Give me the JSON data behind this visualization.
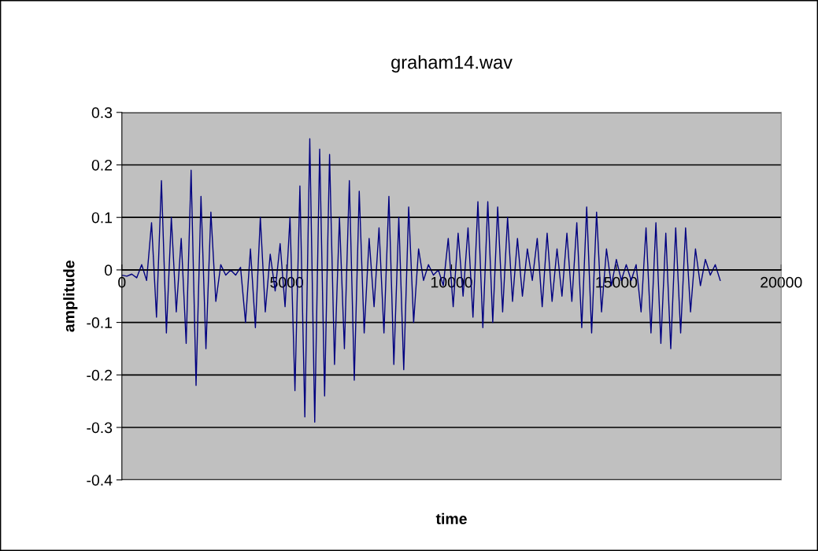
{
  "chart_data": {
    "type": "line",
    "title": "graham14.wav",
    "xlabel": "time",
    "ylabel": "amplitude",
    "xlim": [
      0,
      20000
    ],
    "xticks": [
      0,
      5000,
      10000,
      15000,
      20000
    ],
    "ylim": [
      -0.4,
      0.3
    ],
    "yticks": [
      -0.4,
      -0.3,
      -0.2,
      -0.1,
      0,
      0.1,
      0.2,
      0.3
    ],
    "grid": "y",
    "x": [
      0,
      150,
      300,
      450,
      600,
      750,
      900,
      1050,
      1200,
      1350,
      1500,
      1650,
      1800,
      1950,
      2100,
      2250,
      2400,
      2550,
      2700,
      2850,
      3000,
      3150,
      3300,
      3450,
      3600,
      3750,
      3900,
      4050,
      4200,
      4350,
      4500,
      4650,
      4800,
      4950,
      5100,
      5250,
      5400,
      5550,
      5700,
      5850,
      6000,
      6150,
      6300,
      6450,
      6600,
      6750,
      6900,
      7050,
      7200,
      7350,
      7500,
      7650,
      7800,
      7950,
      8100,
      8250,
      8400,
      8550,
      8700,
      8850,
      9000,
      9150,
      9300,
      9450,
      9600,
      9750,
      9900,
      10050,
      10200,
      10350,
      10500,
      10650,
      10800,
      10950,
      11100,
      11250,
      11400,
      11550,
      11700,
      11850,
      12000,
      12150,
      12300,
      12450,
      12600,
      12750,
      12900,
      13050,
      13200,
      13350,
      13500,
      13650,
      13800,
      13950,
      14100,
      14250,
      14400,
      14550,
      14700,
      14850,
      15000,
      15150,
      15300,
      15450,
      15600,
      15750,
      15900,
      16050,
      16200,
      16350,
      16500,
      16650,
      16800,
      16950,
      17100,
      17250,
      17400,
      17550,
      17700,
      17850,
      18000,
      18150
    ],
    "series": [
      {
        "color": "#000080",
        "values": [
          -0.01,
          -0.012,
          -0.008,
          -0.015,
          0.01,
          -0.02,
          0.09,
          -0.09,
          0.17,
          -0.12,
          0.1,
          -0.08,
          0.06,
          -0.14,
          0.19,
          -0.22,
          0.14,
          -0.15,
          0.11,
          -0.06,
          0.01,
          -0.01,
          0.0,
          -0.01,
          0.005,
          -0.1,
          0.04,
          -0.11,
          0.1,
          -0.08,
          0.03,
          -0.04,
          0.05,
          -0.07,
          0.1,
          -0.23,
          0.16,
          -0.28,
          0.25,
          -0.29,
          0.23,
          -0.24,
          0.22,
          -0.18,
          0.1,
          -0.15,
          0.17,
          -0.21,
          0.15,
          -0.12,
          0.06,
          -0.07,
          0.08,
          -0.12,
          0.14,
          -0.18,
          0.1,
          -0.19,
          0.12,
          -0.1,
          0.04,
          -0.02,
          0.01,
          -0.01,
          0.0,
          -0.03,
          0.06,
          -0.07,
          0.07,
          -0.05,
          0.08,
          -0.09,
          0.13,
          -0.11,
          0.13,
          -0.1,
          0.12,
          -0.08,
          0.1,
          -0.06,
          0.06,
          -0.05,
          0.04,
          -0.02,
          0.06,
          -0.07,
          0.07,
          -0.06,
          0.04,
          -0.05,
          0.07,
          -0.06,
          0.09,
          -0.11,
          0.12,
          -0.12,
          0.11,
          -0.08,
          0.04,
          -0.03,
          0.02,
          -0.02,
          0.01,
          -0.02,
          0.01,
          -0.08,
          0.08,
          -0.12,
          0.09,
          -0.14,
          0.07,
          -0.15,
          0.08,
          -0.12,
          0.08,
          -0.08,
          0.04,
          -0.03,
          0.02,
          -0.01,
          0.01,
          -0.02
        ]
      }
    ]
  }
}
